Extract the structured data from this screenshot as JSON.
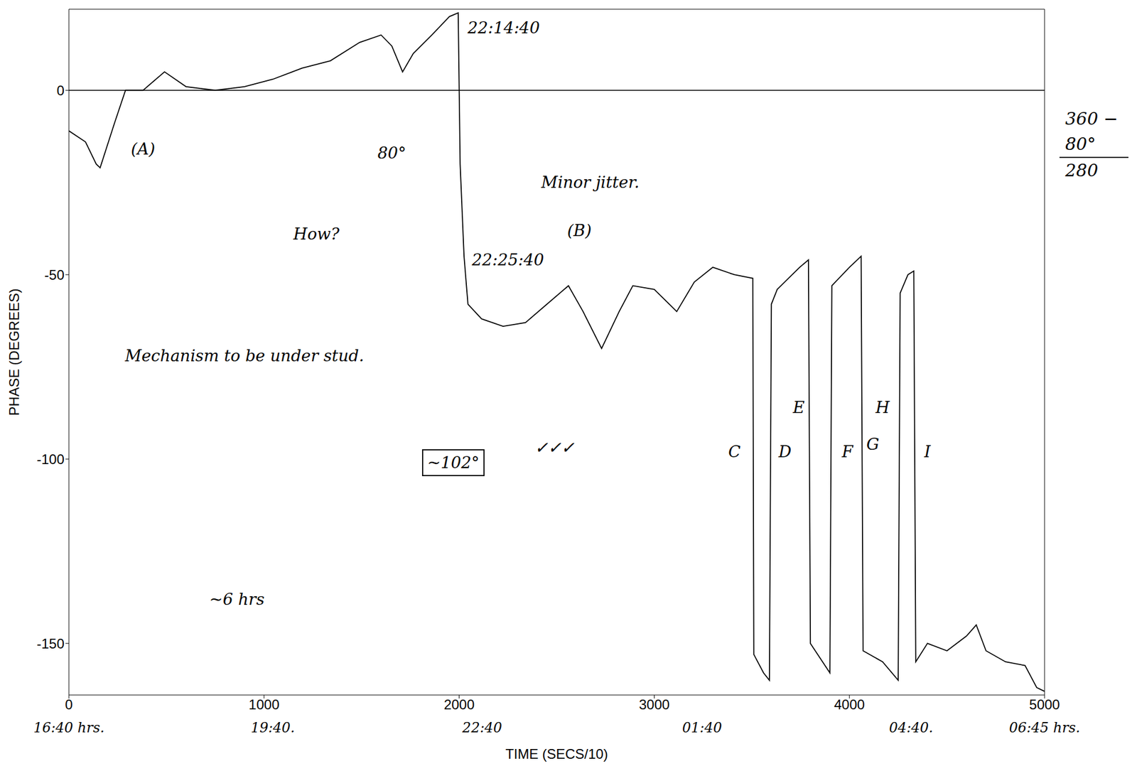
{
  "chart_data": {
    "type": "line",
    "x_label": "TIME (SECS/10)",
    "y_label": "PHASE (DEGREES)",
    "color": "#000000",
    "xlim": [
      0,
      5000
    ],
    "xticks": [
      0,
      1000,
      2000,
      3000,
      4000,
      5000
    ],
    "ylim": [
      -164,
      22
    ],
    "yticks": [
      -150,
      -100,
      -50,
      0
    ],
    "grid": false,
    "reference_lines": [
      0
    ],
    "x": [
      0,
      85,
      140,
      160,
      233,
      290,
      380,
      490,
      600,
      750,
      900,
      1045,
      1195,
      1340,
      1490,
      1600,
      1655,
      1710,
      1765,
      1860,
      1950,
      1995,
      2005,
      2025,
      2045,
      2115,
      2225,
      2340,
      2450,
      2560,
      2635,
      2730,
      2820,
      2890,
      3000,
      3115,
      3205,
      3300,
      3410,
      3505,
      3510,
      3560,
      3590,
      3600,
      3630,
      3745,
      3790,
      3800,
      3900,
      3910,
      4000,
      4060,
      4070,
      4170,
      4250,
      4260,
      4300,
      4330,
      4340,
      4400,
      4500,
      4600,
      4650,
      4700,
      4800,
      4900,
      4960,
      5000
    ],
    "values": [
      -11,
      -14,
      -20,
      -21,
      -9,
      0,
      0,
      5,
      1,
      0,
      1,
      3,
      6,
      8,
      13,
      15,
      12,
      5,
      10,
      15,
      20,
      21,
      -20,
      -45,
      -58,
      -62,
      -64,
      -63,
      -58,
      -53,
      -60,
      -70,
      -60,
      -53,
      -54,
      -60,
      -52,
      -48,
      -50,
      -51,
      -153,
      -158,
      -160,
      -58,
      -54,
      -48,
      -46,
      -150,
      -158,
      -53,
      -48,
      -45,
      -152,
      -155,
      -160,
      -55,
      -50,
      -49,
      -155,
      -150,
      -152,
      -148,
      -145,
      -152,
      -155,
      -156,
      -162,
      -163
    ],
    "annotations": [
      {
        "text": "22:14:40",
        "x": 2228,
        "y": 17
      },
      {
        "text": "(A)",
        "x": 380,
        "y": -16
      },
      {
        "text": "How?",
        "x": 1268,
        "y": -39
      },
      {
        "text": "80°",
        "x": 1655,
        "y": -17
      },
      {
        "text": "Minor jitter.",
        "x": 2672,
        "y": -25
      },
      {
        "text": "22:25:40",
        "x": 2250,
        "y": -46
      },
      {
        "text": "(B)",
        "x": 2616,
        "y": -38
      },
      {
        "text": "Mechanism to be under stud.",
        "x": 900,
        "y": -72
      },
      {
        "text": "~102°",
        "x": 1970,
        "y": -101,
        "boxed": true
      },
      {
        "text": "✓✓✓",
        "x": 2487,
        "y": -97
      },
      {
        "text": "C",
        "x": 3411,
        "y": -98
      },
      {
        "text": "D",
        "x": 3670,
        "y": -98
      },
      {
        "text": "E",
        "x": 3740,
        "y": -86
      },
      {
        "text": "F",
        "x": 3990,
        "y": -98
      },
      {
        "text": "G",
        "x": 4120,
        "y": -96
      },
      {
        "text": "H",
        "x": 4170,
        "y": -86
      },
      {
        "text": "I",
        "x": 4400,
        "y": -98
      },
      {
        "text": "~6 hrs",
        "x": 861,
        "y": -138
      }
    ],
    "time_labels": [
      {
        "x": 0,
        "label": "16:40 hrs."
      },
      {
        "x": 1045,
        "label": "19:40."
      },
      {
        "x": 2118,
        "label": "22:40"
      },
      {
        "x": 3245,
        "label": "01:40"
      },
      {
        "x": 4316,
        "label": "04:40."
      },
      {
        "x": 5000,
        "label": "06:45 hrs."
      }
    ],
    "side_note": [
      "360 −",
      "80°",
      "280"
    ]
  }
}
